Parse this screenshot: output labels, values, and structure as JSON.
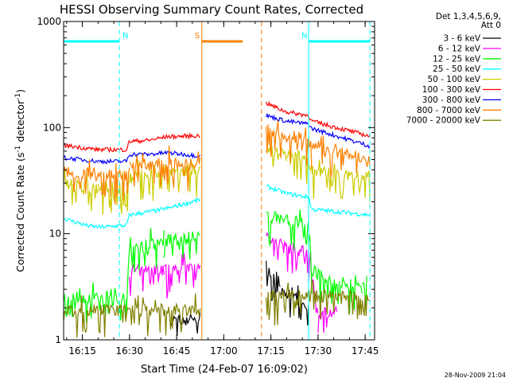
{
  "chart_data": {
    "type": "line",
    "title": "HESSI Observing Summary Count Rates, Corrected",
    "xlabel": "Start Time (24-Feb-07 16:09:02)",
    "ylabel_main": "Corrected Count Rate (s",
    "ylabel_sup1": "-1",
    "ylabel_mid": " detector",
    "ylabel_sup2": "-1",
    "ylabel_end": ")",
    "x_range": [
      "16:09:02",
      "17:48:00"
    ],
    "y_range": [
      1,
      1000
    ],
    "y_scale": "log",
    "x_ticks": [
      "16:15",
      "16:30",
      "16:45",
      "17:00",
      "17:15",
      "17:30",
      "17:45"
    ],
    "y_ticks": [
      1,
      10,
      100,
      1000
    ],
    "y_tick_labels": [
      "1",
      "10",
      "100",
      "1000"
    ],
    "date_stamp": "28-Nov-2009 21:04",
    "legend": {
      "title_lines": [
        "Det 1,3,4,5,6,9,",
        "Att 0"
      ],
      "entries": [
        {
          "label": "3 - 6 keV",
          "color": "#000000"
        },
        {
          "label": "6 - 12 keV",
          "color": "#ff00ff"
        },
        {
          "label": "12 - 25 keV",
          "color": "#00ff00"
        },
        {
          "label": "25 - 50 keV",
          "color": "#00ffff"
        },
        {
          "label": "50 - 100 keV",
          "color": "#cccc00"
        },
        {
          "label": "100 - 300 keV",
          "color": "#ff0000"
        },
        {
          "label": "300 - 800 keV",
          "color": "#0000ff"
        },
        {
          "label": "800 - 7000 keV",
          "color": "#ff8000"
        },
        {
          "label": "7000 - 20000 keV",
          "color": "#808000"
        }
      ]
    },
    "gap": {
      "start": "16:52:30",
      "end": "17:13:30"
    },
    "events": [
      {
        "label": "N",
        "color": "#00ffff",
        "bar_start": "16:09:02",
        "bar_end": "16:26:45",
        "dash_at": "16:26:45",
        "level": 650
      },
      {
        "label": "N",
        "color": "#00ffff",
        "bar_start": "17:27:00",
        "bar_end": "17:46:30",
        "dash_at": "17:46:30",
        "start_line": "17:27:00",
        "level": 650
      },
      {
        "label": "S",
        "color": "#ff8000",
        "bar_start": "16:53:00",
        "bar_end": "17:06:00",
        "dash_at": "17:12:00",
        "start_line": "16:53:00",
        "level": 650
      }
    ],
    "series": [
      {
        "name": "3 - 6 keV",
        "color": "#000000",
        "noisy": true,
        "points": [
          [
            "16:43:00",
            1.5
          ],
          [
            "16:52:30",
            1.6
          ],
          [
            "17:13:30",
            5.0
          ],
          [
            "17:18:00",
            2.8
          ],
          [
            "17:23:00",
            2.5
          ],
          [
            "17:27:00",
            2.1
          ]
        ]
      },
      {
        "name": "6 - 12 keV",
        "color": "#ff00ff",
        "noisy": true,
        "points": [
          [
            "16:30:00",
            4.4
          ],
          [
            "16:41:00",
            4.6
          ],
          [
            "16:52:30",
            4.7
          ],
          [
            "17:13:30",
            9.5
          ],
          [
            "17:20:00",
            7.5
          ],
          [
            "17:27:00",
            6.5
          ],
          [
            "17:30:00",
            1.8
          ],
          [
            "17:36:00",
            1.8
          ]
        ]
      },
      {
        "name": "12 - 25 keV",
        "color": "#00ff00",
        "noisy": true,
        "points": [
          [
            "16:09:02",
            2.5
          ],
          [
            "16:29:00",
            2.5
          ],
          [
            "16:30:00",
            7.0
          ],
          [
            "16:41:00",
            8.5
          ],
          [
            "16:52:30",
            9.5
          ],
          [
            "17:13:30",
            15
          ],
          [
            "17:27:00",
            12
          ],
          [
            "17:28:00",
            4.5
          ],
          [
            "17:37:00",
            3.5
          ],
          [
            "17:44:00",
            3.0
          ],
          [
            "17:45:30",
            3.0
          ]
        ]
      },
      {
        "name": "25 - 50 keV",
        "color": "#00ffff",
        "noisy": false,
        "points": [
          [
            "16:09:02",
            14
          ],
          [
            "16:16:00",
            12
          ],
          [
            "16:20:00",
            11.5
          ],
          [
            "16:29:00",
            12
          ],
          [
            "16:30:00",
            15
          ],
          [
            "16:41:00",
            17
          ],
          [
            "16:50:00",
            20
          ],
          [
            "16:52:30",
            21
          ],
          [
            "17:13:30",
            28
          ],
          [
            "17:20:00",
            24
          ],
          [
            "17:27:00",
            22
          ],
          [
            "17:28:00",
            17
          ],
          [
            "17:46:30",
            15
          ]
        ]
      },
      {
        "name": "50 - 100 keV",
        "color": "#cccc00",
        "noisy": true,
        "points": [
          [
            "16:09:02",
            29
          ],
          [
            "16:20:00",
            27
          ],
          [
            "16:29:00",
            27
          ],
          [
            "16:30:00",
            34
          ],
          [
            "16:36:00",
            36
          ],
          [
            "16:42:00",
            40
          ],
          [
            "16:52:30",
            40
          ],
          [
            "17:13:30",
            60
          ],
          [
            "17:20:00",
            54
          ],
          [
            "17:27:00",
            52
          ],
          [
            "17:28:00",
            40
          ],
          [
            "17:46:30",
            34
          ]
        ]
      },
      {
        "name": "100 - 300 keV",
        "color": "#ff0000",
        "noisy": false,
        "points": [
          [
            "16:09:02",
            68
          ],
          [
            "16:20:00",
            62
          ],
          [
            "16:29:00",
            62
          ],
          [
            "16:30:00",
            74
          ],
          [
            "16:36:00",
            76
          ],
          [
            "16:42:00",
            82
          ],
          [
            "16:52:30",
            84
          ],
          [
            "17:13:30",
            170
          ],
          [
            "17:20:00",
            140
          ],
          [
            "17:27:00",
            130
          ],
          [
            "17:28:00",
            115
          ],
          [
            "17:46:30",
            83
          ]
        ]
      },
      {
        "name": "300 - 800 keV",
        "color": "#0000ff",
        "noisy": false,
        "points": [
          [
            "16:09:02",
            52
          ],
          [
            "16:20:00",
            48
          ],
          [
            "16:29:00",
            48
          ],
          [
            "16:30:00",
            56
          ],
          [
            "16:36:00",
            56
          ],
          [
            "16:42:00",
            58
          ],
          [
            "16:52:30",
            54
          ],
          [
            "17:13:30",
            130
          ],
          [
            "17:20:00",
            115
          ],
          [
            "17:27:00",
            108
          ],
          [
            "17:28:00",
            98
          ],
          [
            "17:46:30",
            67
          ]
        ]
      },
      {
        "name": "800 - 7000 keV",
        "color": "#ff8000",
        "noisy": true,
        "points": [
          [
            "16:09:02",
            39
          ],
          [
            "16:20:00",
            36
          ],
          [
            "16:29:00",
            36
          ],
          [
            "16:30:00",
            42
          ],
          [
            "16:42:00",
            48
          ],
          [
            "16:52:30",
            44
          ],
          [
            "17:13:30",
            98
          ],
          [
            "17:20:00",
            82
          ],
          [
            "17:27:00",
            78
          ],
          [
            "17:28:00",
            70
          ],
          [
            "17:46:30",
            48
          ]
        ]
      },
      {
        "name": "7000 - 20000 keV",
        "color": "#808000",
        "noisy": true,
        "points": [
          [
            "16:09:02",
            1.9
          ],
          [
            "16:52:30",
            1.9
          ],
          [
            "17:13:30",
            2.6
          ],
          [
            "17:46:30",
            2.6
          ]
        ]
      }
    ]
  }
}
